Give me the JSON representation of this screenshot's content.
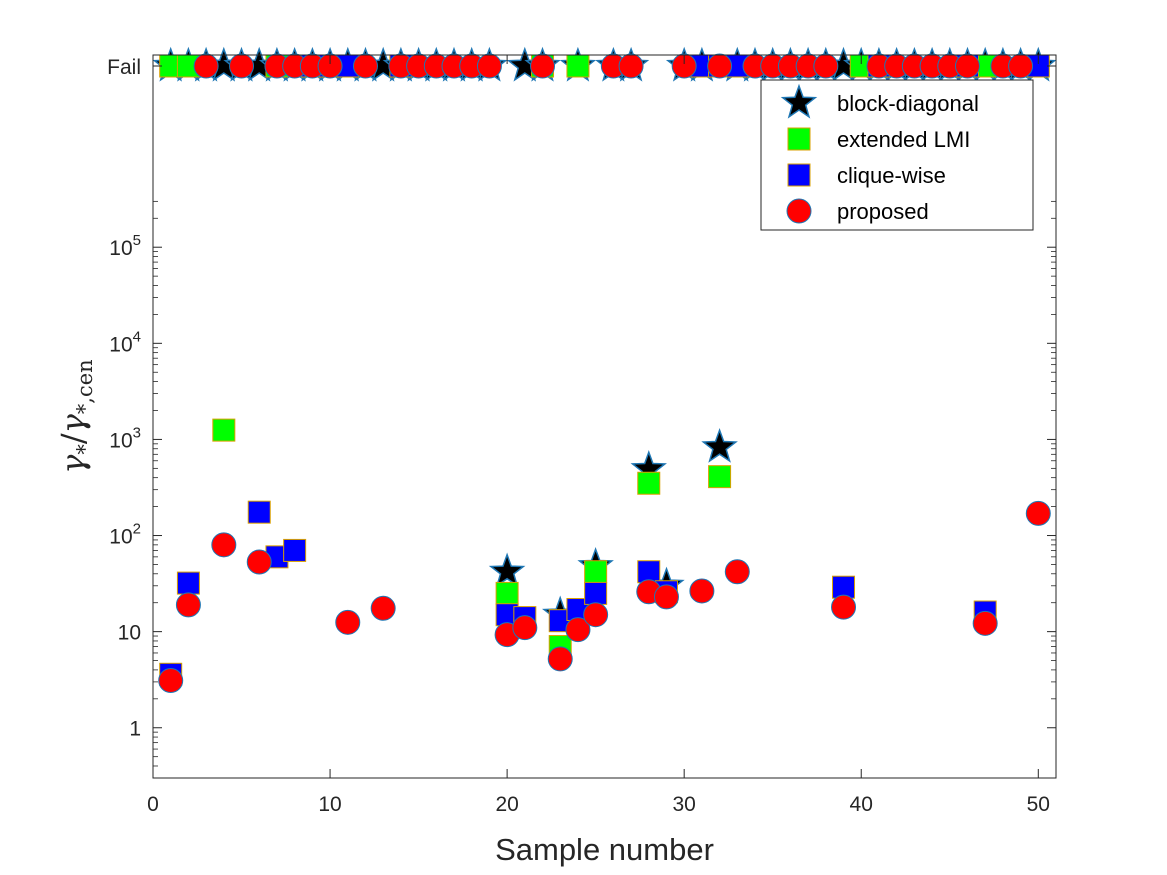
{
  "chart_data": {
    "type": "scatter",
    "xlabel": "Sample number",
    "ylabel": "γ*/γ*,cen",
    "xlim": [
      0,
      51
    ],
    "ylim": [
      0.3,
      10000000
    ],
    "yscale": "log",
    "fail_value": 10000000,
    "xticks": [
      0,
      10,
      20,
      30,
      40,
      50
    ],
    "yticks": [
      {
        "value": 1,
        "label": "1"
      },
      {
        "value": 10,
        "label": "10"
      },
      {
        "value": 100,
        "label": "10",
        "sup": "2"
      },
      {
        "value": 1000,
        "label": "10",
        "sup": "3"
      },
      {
        "value": 10000,
        "label": "10",
        "sup": "4"
      },
      {
        "value": 100000,
        "label": "10",
        "sup": "5"
      },
      {
        "value": 10000000,
        "label": "Fail"
      }
    ],
    "legend_position": "top-right",
    "series": [
      {
        "name": "block-diagonal",
        "marker": "star",
        "color": "#000000",
        "edge": "#1f77b4",
        "points": [
          [
            1,
            "Fail"
          ],
          [
            2,
            "Fail"
          ],
          [
            3,
            "Fail"
          ],
          [
            4,
            "Fail"
          ],
          [
            5,
            "Fail"
          ],
          [
            6,
            "Fail"
          ],
          [
            7,
            "Fail"
          ],
          [
            8,
            "Fail"
          ],
          [
            9,
            "Fail"
          ],
          [
            10,
            "Fail"
          ],
          [
            11,
            "Fail"
          ],
          [
            12,
            "Fail"
          ],
          [
            13,
            "Fail"
          ],
          [
            14,
            "Fail"
          ],
          [
            15,
            "Fail"
          ],
          [
            16,
            "Fail"
          ],
          [
            17,
            "Fail"
          ],
          [
            18,
            "Fail"
          ],
          [
            19,
            "Fail"
          ],
          [
            20,
            42
          ],
          [
            21,
            "Fail"
          ],
          [
            22,
            "Fail"
          ],
          [
            23,
            15
          ],
          [
            24,
            "Fail"
          ],
          [
            25,
            48
          ],
          [
            26,
            "Fail"
          ],
          [
            27,
            "Fail"
          ],
          [
            28,
            490
          ],
          [
            29,
            30
          ],
          [
            30,
            "Fail"
          ],
          [
            31,
            "Fail"
          ],
          [
            32,
            830
          ],
          [
            33,
            "Fail"
          ],
          [
            34,
            "Fail"
          ],
          [
            35,
            "Fail"
          ],
          [
            36,
            "Fail"
          ],
          [
            37,
            "Fail"
          ],
          [
            38,
            "Fail"
          ],
          [
            39,
            "Fail"
          ],
          [
            40,
            "Fail"
          ],
          [
            41,
            "Fail"
          ],
          [
            42,
            "Fail"
          ],
          [
            43,
            "Fail"
          ],
          [
            44,
            "Fail"
          ],
          [
            45,
            "Fail"
          ],
          [
            46,
            "Fail"
          ],
          [
            47,
            "Fail"
          ],
          [
            48,
            "Fail"
          ],
          [
            49,
            "Fail"
          ],
          [
            50,
            "Fail"
          ]
        ]
      },
      {
        "name": "extended LMI",
        "marker": "square",
        "color": "#00ff00",
        "edge": "#d9a000",
        "points": [
          [
            1,
            "Fail"
          ],
          [
            2,
            "Fail"
          ],
          [
            4,
            1250
          ],
          [
            7,
            "Fail"
          ],
          [
            20,
            25
          ],
          [
            22,
            "Fail"
          ],
          [
            23,
            7
          ],
          [
            24,
            "Fail"
          ],
          [
            25,
            42
          ],
          [
            28,
            350
          ],
          [
            32,
            410
          ],
          [
            40,
            "Fail"
          ],
          [
            47,
            "Fail"
          ]
        ]
      },
      {
        "name": "clique-wise",
        "marker": "square",
        "color": "#0000ff",
        "edge": "#d9a000",
        "points": [
          [
            1,
            3.6
          ],
          [
            2,
            32
          ],
          [
            6,
            175
          ],
          [
            7,
            60
          ],
          [
            8,
            70
          ],
          [
            9,
            "Fail"
          ],
          [
            10,
            "Fail"
          ],
          [
            11,
            "Fail"
          ],
          [
            14,
            "Fail"
          ],
          [
            20,
            15
          ],
          [
            21,
            14
          ],
          [
            23,
            13
          ],
          [
            24,
            17
          ],
          [
            25,
            25
          ],
          [
            28,
            42
          ],
          [
            29,
            26
          ],
          [
            31,
            "Fail"
          ],
          [
            32,
            "Fail"
          ],
          [
            33,
            "Fail"
          ],
          [
            39,
            29
          ],
          [
            41,
            "Fail"
          ],
          [
            46,
            "Fail"
          ],
          [
            47,
            16
          ],
          [
            50,
            "Fail"
          ]
        ]
      },
      {
        "name": "proposed",
        "marker": "circle",
        "color": "#ff0000",
        "edge": "#1f77b4",
        "points": [
          [
            1,
            3.1
          ],
          [
            2,
            19
          ],
          [
            3,
            "Fail"
          ],
          [
            4,
            80
          ],
          [
            5,
            "Fail"
          ],
          [
            6,
            53
          ],
          [
            7,
            "Fail"
          ],
          [
            8,
            "Fail"
          ],
          [
            9,
            "Fail"
          ],
          [
            10,
            "Fail"
          ],
          [
            11,
            12.5
          ],
          [
            12,
            "Fail"
          ],
          [
            13,
            17.5
          ],
          [
            14,
            "Fail"
          ],
          [
            15,
            "Fail"
          ],
          [
            16,
            "Fail"
          ],
          [
            17,
            "Fail"
          ],
          [
            18,
            "Fail"
          ],
          [
            19,
            "Fail"
          ],
          [
            20,
            9.3
          ],
          [
            21,
            11
          ],
          [
            22,
            "Fail"
          ],
          [
            23,
            5.2
          ],
          [
            24,
            10.5
          ],
          [
            25,
            15
          ],
          [
            26,
            "Fail"
          ],
          [
            27,
            "Fail"
          ],
          [
            28,
            26
          ],
          [
            29,
            23
          ],
          [
            30,
            "Fail"
          ],
          [
            31,
            26.5
          ],
          [
            32,
            "Fail"
          ],
          [
            33,
            42
          ],
          [
            34,
            "Fail"
          ],
          [
            35,
            "Fail"
          ],
          [
            36,
            "Fail"
          ],
          [
            37,
            "Fail"
          ],
          [
            38,
            "Fail"
          ],
          [
            39,
            18
          ],
          [
            41,
            "Fail"
          ],
          [
            42,
            "Fail"
          ],
          [
            43,
            "Fail"
          ],
          [
            44,
            "Fail"
          ],
          [
            45,
            "Fail"
          ],
          [
            46,
            "Fail"
          ],
          [
            47,
            12.2
          ],
          [
            48,
            "Fail"
          ],
          [
            49,
            "Fail"
          ],
          [
            50,
            170
          ]
        ]
      }
    ]
  }
}
